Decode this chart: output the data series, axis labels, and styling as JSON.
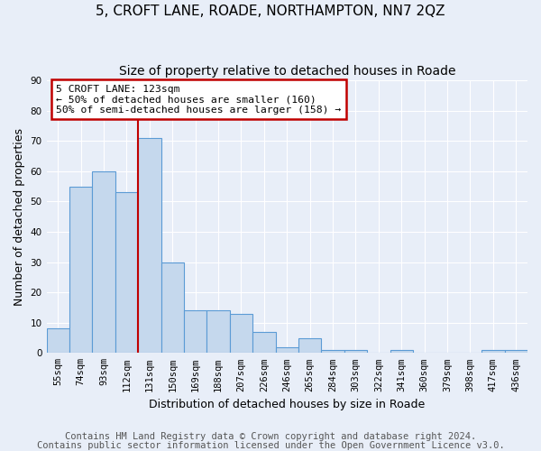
{
  "title": "5, CROFT LANE, ROADE, NORTHAMPTON, NN7 2QZ",
  "subtitle": "Size of property relative to detached houses in Roade",
  "xlabel": "Distribution of detached houses by size in Roade",
  "ylabel": "Number of detached properties",
  "categories": [
    "55sqm",
    "74sqm",
    "93sqm",
    "112sqm",
    "131sqm",
    "150sqm",
    "169sqm",
    "188sqm",
    "207sqm",
    "226sqm",
    "246sqm",
    "265sqm",
    "284sqm",
    "303sqm",
    "322sqm",
    "341sqm",
    "360sqm",
    "379sqm",
    "398sqm",
    "417sqm",
    "436sqm"
  ],
  "values": [
    8,
    55,
    60,
    53,
    71,
    30,
    14,
    14,
    13,
    7,
    2,
    5,
    1,
    1,
    0,
    1,
    0,
    0,
    0,
    1,
    1
  ],
  "bar_color": "#c5d8ed",
  "bar_edge_color": "#5b9bd5",
  "annotation_line1": "5 CROFT LANE: 123sqm",
  "annotation_line2": "← 50% of detached houses are smaller (160)",
  "annotation_line3": "50% of semi-detached houses are larger (158) →",
  "marker_line_color": "#c00000",
  "annotation_box_color": "#ffffff",
  "annotation_box_edge_color": "#c00000",
  "footnote1": "Contains HM Land Registry data © Crown copyright and database right 2024.",
  "footnote2": "Contains public sector information licensed under the Open Government Licence v3.0.",
  "ylim": [
    0,
    90
  ],
  "background_color": "#e8eef8",
  "plot_bg_color": "#e8eef8",
  "grid_color": "#ffffff",
  "title_fontsize": 11,
  "subtitle_fontsize": 10,
  "axis_label_fontsize": 9,
  "tick_fontsize": 7.5,
  "footnote_fontsize": 7.5
}
